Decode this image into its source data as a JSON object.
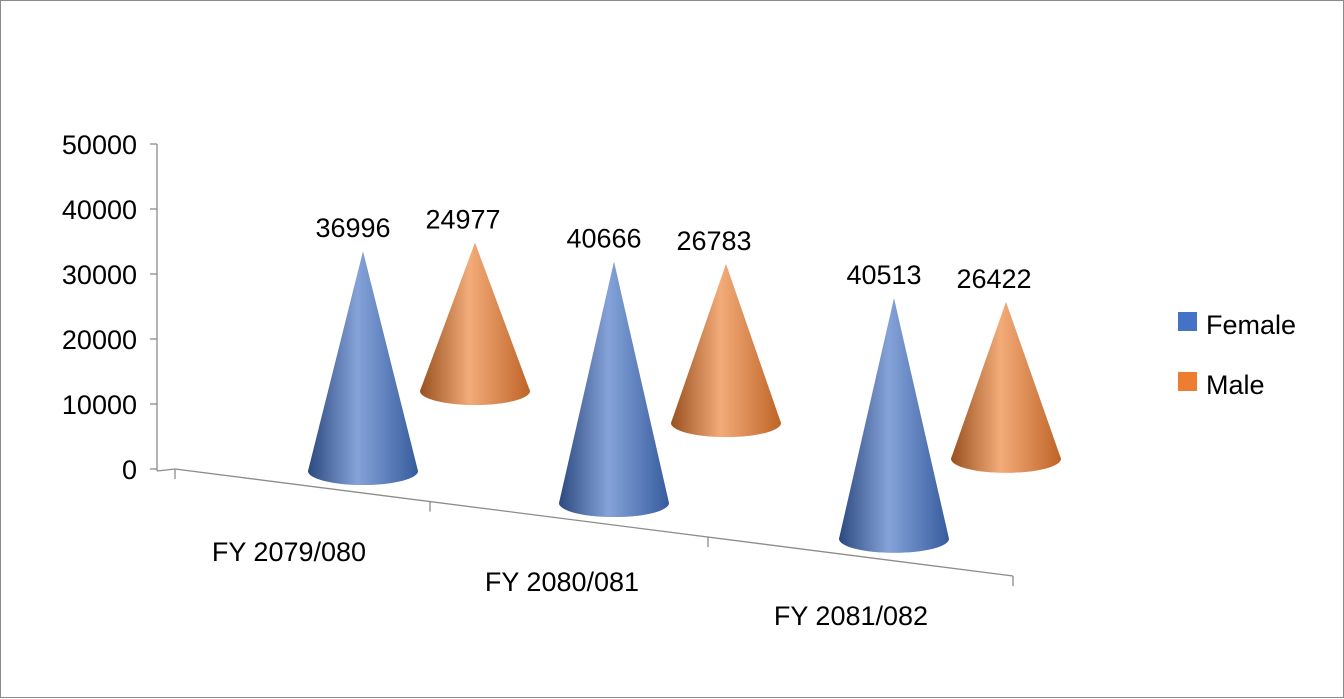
{
  "chart_data": {
    "type": "bar",
    "shape": "3d-cone",
    "title": "",
    "xlabel": "",
    "ylabel": "",
    "categories": [
      "FY 2079/080",
      "FY 2080/081",
      "FY 2081/082"
    ],
    "series": [
      {
        "name": "Female",
        "values": [
          36996,
          40666,
          40513
        ],
        "color": "#4472C4"
      },
      {
        "name": "Male",
        "values": [
          24977,
          26783,
          26422
        ],
        "color": "#ED7D31"
      }
    ],
    "yticks": [
      "0",
      "10000",
      "20000",
      "30000",
      "40000",
      "50000"
    ],
    "ylim": [
      0,
      50000
    ],
    "data_labels": true,
    "grid": false,
    "legend": {
      "position": "right"
    }
  }
}
